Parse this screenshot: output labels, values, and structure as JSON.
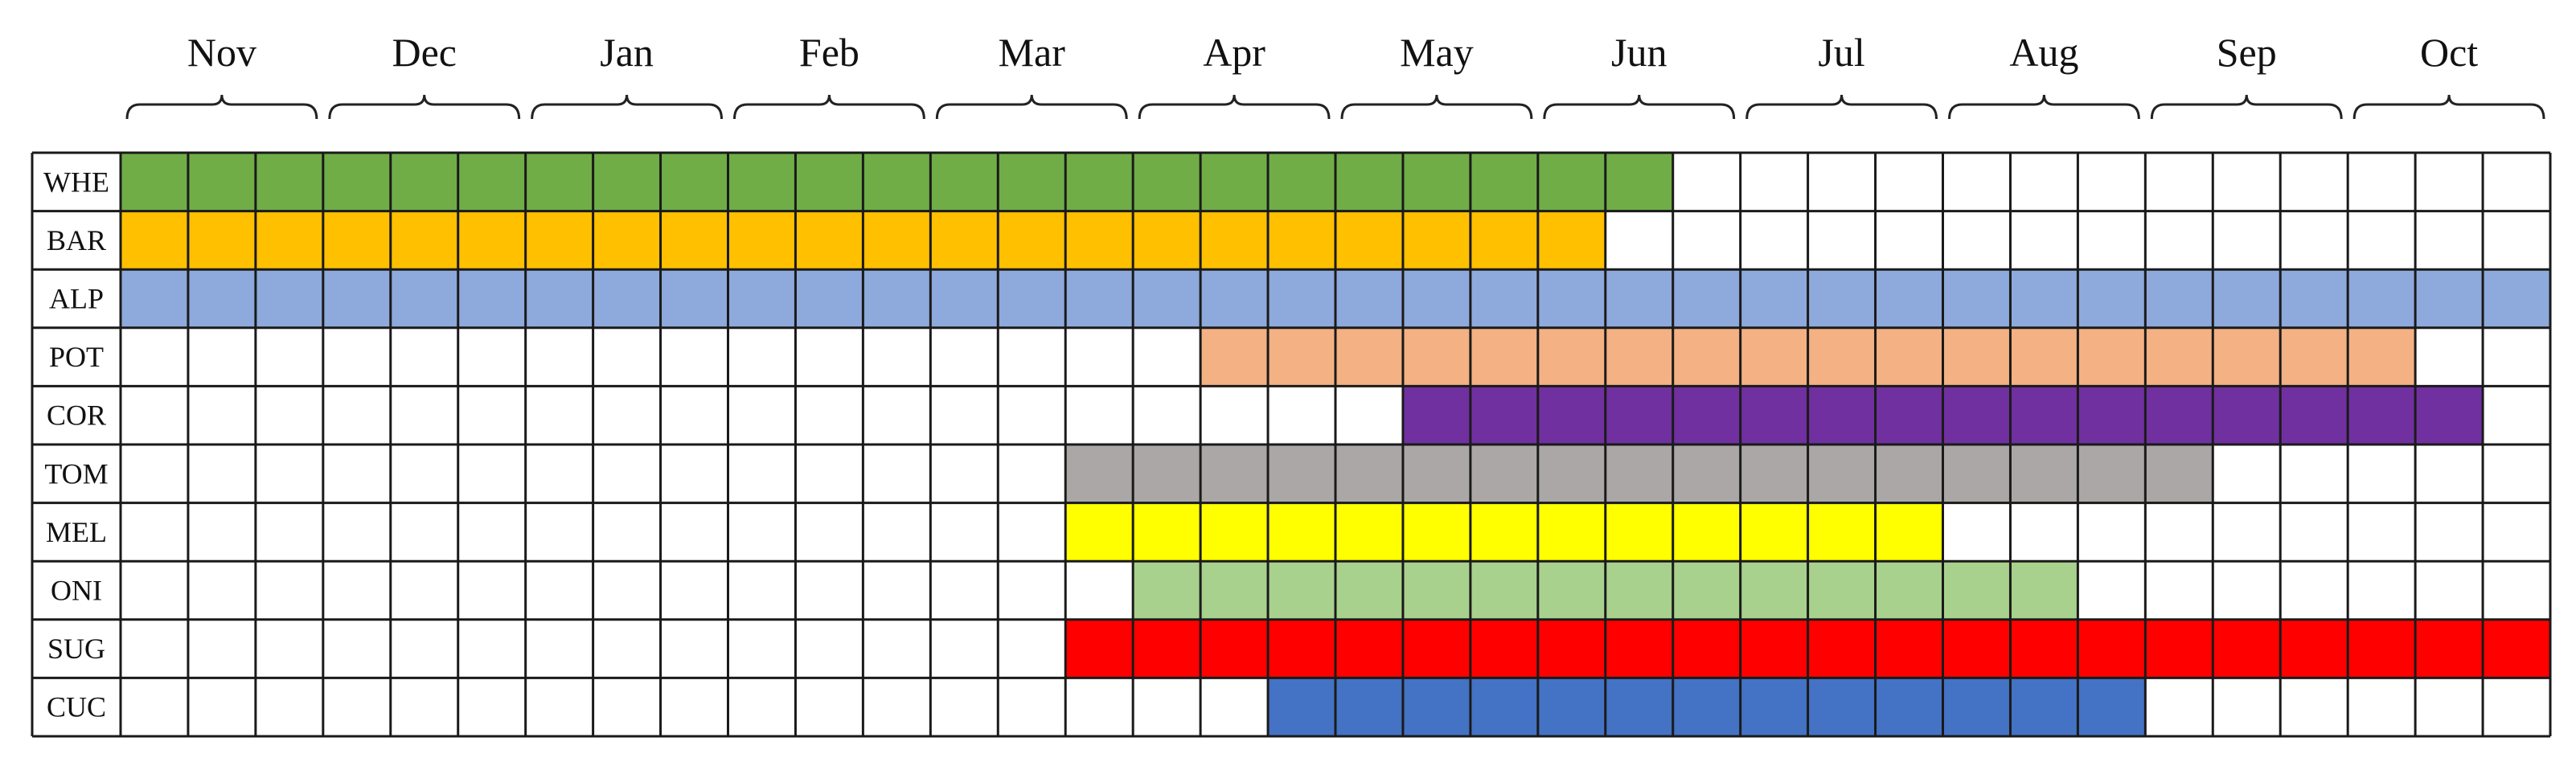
{
  "chart_data": {
    "type": "gantt",
    "title": "",
    "months": [
      "Nov",
      "Dec",
      "Jan",
      "Feb",
      "Mar",
      "Apr",
      "May",
      "Jun",
      "Jul",
      "Aug",
      "Sep",
      "Oct"
    ],
    "periods_per_month": 3,
    "crops": [
      {
        "label": "WHE",
        "start": 0,
        "end": 23,
        "color": "#70AD47"
      },
      {
        "label": "BAR",
        "start": 0,
        "end": 22,
        "color": "#FFC000"
      },
      {
        "label": "ALP",
        "start": 0,
        "end": 36,
        "color": "#8EA9DB"
      },
      {
        "label": "POT",
        "start": 16,
        "end": 34,
        "color": "#F4B183"
      },
      {
        "label": "COR",
        "start": 19,
        "end": 35,
        "color": "#7030A0"
      },
      {
        "label": "TOM",
        "start": 14,
        "end": 31,
        "color": "#ABA7A6"
      },
      {
        "label": "MEL",
        "start": 14,
        "end": 27,
        "color": "#FFFF00"
      },
      {
        "label": "ONI",
        "start": 15,
        "end": 29,
        "color": "#A9D18E"
      },
      {
        "label": "SUG",
        "start": 14,
        "end": 36,
        "color": "#FF0000"
      },
      {
        "label": "CUC",
        "start": 17,
        "end": 30,
        "color": "#4472C4"
      }
    ]
  }
}
